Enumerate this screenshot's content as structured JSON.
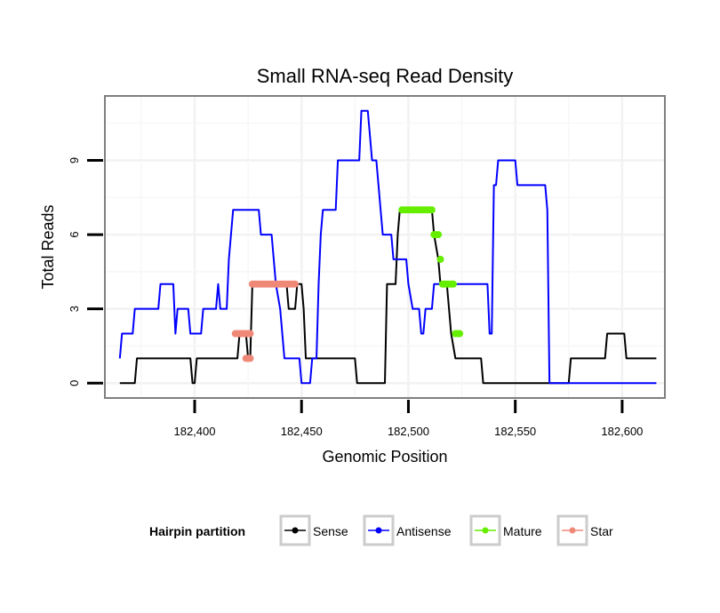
{
  "chart_data": {
    "type": "line",
    "title": "Small RNA-seq Read Density",
    "xlabel": "Genomic Position",
    "ylabel": "Total Reads",
    "xlim": [
      182358,
      182620
    ],
    "ylim": [
      -0.6,
      11.6
    ],
    "xticks": [
      {
        "value": 182400,
        "label": "182,400"
      },
      {
        "value": 182450,
        "label": "182,450"
      },
      {
        "value": 182500,
        "label": "182,500"
      },
      {
        "value": 182550,
        "label": "182,550"
      },
      {
        "value": 182600,
        "label": "182,600"
      }
    ],
    "yticks": [
      {
        "value": 0,
        "label": "0"
      },
      {
        "value": 3,
        "label": "3"
      },
      {
        "value": 6,
        "label": "6"
      },
      {
        "value": 9,
        "label": "9"
      }
    ],
    "grid": true,
    "legend": {
      "title": "Hairpin partition",
      "position": "bottom"
    },
    "series": [
      {
        "name": "Sense",
        "color": "#000000",
        "style": "line",
        "points": [
          [
            182365,
            0
          ],
          [
            182372,
            0
          ],
          [
            182373,
            1
          ],
          [
            182398,
            1
          ],
          [
            182399,
            0
          ],
          [
            182400,
            0
          ],
          [
            182401,
            1
          ],
          [
            182420,
            1
          ],
          [
            182421,
            2
          ],
          [
            182424,
            2
          ],
          [
            182425,
            1
          ],
          [
            182426,
            1
          ],
          [
            182427,
            4
          ],
          [
            182443,
            4
          ],
          [
            182444,
            3
          ],
          [
            182447,
            3
          ],
          [
            182448,
            4
          ],
          [
            182450,
            4
          ],
          [
            182451,
            3
          ],
          [
            182452,
            1
          ],
          [
            182475,
            1
          ],
          [
            182476,
            0
          ],
          [
            182489,
            0
          ],
          [
            182490,
            4
          ],
          [
            182494,
            4
          ],
          [
            182495,
            6
          ],
          [
            182496,
            7
          ],
          [
            182511,
            7
          ],
          [
            182512,
            6
          ],
          [
            182514,
            5
          ],
          [
            182515,
            4
          ],
          [
            182518,
            4
          ],
          [
            182520,
            2
          ],
          [
            182522,
            1
          ],
          [
            182534,
            1
          ],
          [
            182535,
            0
          ],
          [
            182568,
            0
          ],
          [
            182569,
            0
          ],
          [
            182575,
            0
          ],
          [
            182576,
            1
          ],
          [
            182592,
            1
          ],
          [
            182593,
            2
          ],
          [
            182601,
            2
          ],
          [
            182602,
            1
          ],
          [
            182616,
            1
          ]
        ]
      },
      {
        "name": "Antisense",
        "color": "#0000ff",
        "style": "line",
        "points": [
          [
            182365,
            1
          ],
          [
            182366,
            2
          ],
          [
            182371,
            2
          ],
          [
            182372,
            3
          ],
          [
            182383,
            3
          ],
          [
            182384,
            4
          ],
          [
            182390,
            4
          ],
          [
            182391,
            2
          ],
          [
            182392,
            3
          ],
          [
            182397,
            3
          ],
          [
            182398,
            2
          ],
          [
            182403,
            2
          ],
          [
            182404,
            3
          ],
          [
            182410,
            3
          ],
          [
            182411,
            4
          ],
          [
            182412,
            3
          ],
          [
            182415,
            3
          ],
          [
            182416,
            5
          ],
          [
            182418,
            7
          ],
          [
            182430,
            7
          ],
          [
            182431,
            6
          ],
          [
            182436,
            6
          ],
          [
            182437,
            5
          ],
          [
            182438,
            4
          ],
          [
            182440,
            3
          ],
          [
            182442,
            1
          ],
          [
            182449,
            1
          ],
          [
            182450,
            0
          ],
          [
            182454,
            0
          ],
          [
            182455,
            1
          ],
          [
            182457,
            1
          ],
          [
            182458,
            4
          ],
          [
            182459,
            6
          ],
          [
            182460,
            7
          ],
          [
            182466,
            7
          ],
          [
            182467,
            9
          ],
          [
            182477,
            9
          ],
          [
            182478,
            11
          ],
          [
            182481,
            11
          ],
          [
            182482,
            10
          ],
          [
            182483,
            9
          ],
          [
            182485,
            9
          ],
          [
            182486,
            8
          ],
          [
            182488,
            6
          ],
          [
            182492,
            6
          ],
          [
            182493,
            5
          ],
          [
            182499,
            5
          ],
          [
            182500,
            4
          ],
          [
            182502,
            3
          ],
          [
            182505,
            3
          ],
          [
            182506,
            2
          ],
          [
            182507,
            2
          ],
          [
            182508,
            3
          ],
          [
            182511,
            3
          ],
          [
            182512,
            4
          ],
          [
            182537,
            4
          ],
          [
            182538,
            2
          ],
          [
            182539,
            2
          ],
          [
            182540,
            8
          ],
          [
            182541,
            8
          ],
          [
            182542,
            9
          ],
          [
            182550,
            9
          ],
          [
            182551,
            8
          ],
          [
            182564,
            8
          ],
          [
            182565,
            7
          ],
          [
            182566,
            0
          ],
          [
            182616,
            0
          ]
        ]
      },
      {
        "name": "Mature",
        "color": "#66ee00",
        "style": "markers",
        "points": [
          [
            182497,
            7
          ],
          [
            182498,
            7
          ],
          [
            182499,
            7
          ],
          [
            182500,
            7
          ],
          [
            182501,
            7
          ],
          [
            182502,
            7
          ],
          [
            182503,
            7
          ],
          [
            182504,
            7
          ],
          [
            182505,
            7
          ],
          [
            182506,
            7
          ],
          [
            182507,
            7
          ],
          [
            182508,
            7
          ],
          [
            182509,
            7
          ],
          [
            182510,
            7
          ],
          [
            182511,
            7
          ],
          [
            182512,
            6
          ],
          [
            182513,
            6
          ],
          [
            182514,
            6
          ],
          [
            182515,
            5
          ],
          [
            182516,
            4
          ],
          [
            182517,
            4
          ],
          [
            182518,
            4
          ],
          [
            182519,
            4
          ],
          [
            182520,
            4
          ],
          [
            182521,
            4
          ],
          [
            182522,
            2
          ],
          [
            182523,
            2
          ],
          [
            182524,
            2
          ]
        ]
      },
      {
        "name": "Star",
        "color": "#f08878",
        "style": "markers",
        "points": [
          [
            182419,
            2
          ],
          [
            182420,
            2
          ],
          [
            182421,
            2
          ],
          [
            182422,
            2
          ],
          [
            182423,
            2
          ],
          [
            182424,
            2
          ],
          [
            182425,
            2
          ],
          [
            182426,
            2
          ],
          [
            182424,
            1
          ],
          [
            182425,
            1
          ],
          [
            182426,
            1
          ],
          [
            182427,
            4
          ],
          [
            182428,
            4
          ],
          [
            182429,
            4
          ],
          [
            182430,
            4
          ],
          [
            182431,
            4
          ],
          [
            182432,
            4
          ],
          [
            182433,
            4
          ],
          [
            182434,
            4
          ],
          [
            182435,
            4
          ],
          [
            182436,
            4
          ],
          [
            182437,
            4
          ],
          [
            182438,
            4
          ],
          [
            182439,
            4
          ],
          [
            182440,
            4
          ],
          [
            182441,
            4
          ],
          [
            182442,
            4
          ],
          [
            182443,
            4
          ],
          [
            182444,
            4
          ],
          [
            182445,
            4
          ],
          [
            182446,
            4
          ],
          [
            182447,
            4
          ]
        ]
      }
    ]
  }
}
